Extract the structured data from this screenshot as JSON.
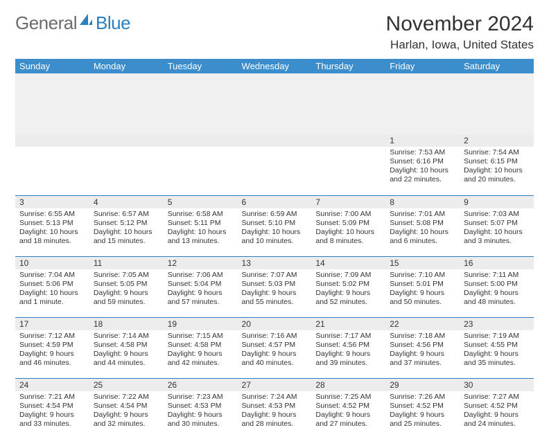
{
  "logo": {
    "text1": "General",
    "text2": "Blue"
  },
  "title": "November 2024",
  "location": "Harlan, Iowa, United States",
  "colors": {
    "header_bg": "#3c8dcc",
    "header_text": "#ffffff",
    "rule": "#2a7fbf",
    "daynum_bg": "#ececec",
    "body_text": "#333333",
    "logo_gray": "#6b6b6b",
    "logo_blue": "#2a7fbf"
  },
  "day_names": [
    "Sunday",
    "Monday",
    "Tuesday",
    "Wednesday",
    "Thursday",
    "Friday",
    "Saturday"
  ],
  "weeks": [
    [
      null,
      null,
      null,
      null,
      null,
      {
        "n": "1",
        "sr": "Sunrise: 7:53 AM",
        "ss": "Sunset: 6:16 PM",
        "dl": "Daylight: 10 hours and 22 minutes."
      },
      {
        "n": "2",
        "sr": "Sunrise: 7:54 AM",
        "ss": "Sunset: 6:15 PM",
        "dl": "Daylight: 10 hours and 20 minutes."
      }
    ],
    [
      {
        "n": "3",
        "sr": "Sunrise: 6:55 AM",
        "ss": "Sunset: 5:13 PM",
        "dl": "Daylight: 10 hours and 18 minutes."
      },
      {
        "n": "4",
        "sr": "Sunrise: 6:57 AM",
        "ss": "Sunset: 5:12 PM",
        "dl": "Daylight: 10 hours and 15 minutes."
      },
      {
        "n": "5",
        "sr": "Sunrise: 6:58 AM",
        "ss": "Sunset: 5:11 PM",
        "dl": "Daylight: 10 hours and 13 minutes."
      },
      {
        "n": "6",
        "sr": "Sunrise: 6:59 AM",
        "ss": "Sunset: 5:10 PM",
        "dl": "Daylight: 10 hours and 10 minutes."
      },
      {
        "n": "7",
        "sr": "Sunrise: 7:00 AM",
        "ss": "Sunset: 5:09 PM",
        "dl": "Daylight: 10 hours and 8 minutes."
      },
      {
        "n": "8",
        "sr": "Sunrise: 7:01 AM",
        "ss": "Sunset: 5:08 PM",
        "dl": "Daylight: 10 hours and 6 minutes."
      },
      {
        "n": "9",
        "sr": "Sunrise: 7:03 AM",
        "ss": "Sunset: 5:07 PM",
        "dl": "Daylight: 10 hours and 3 minutes."
      }
    ],
    [
      {
        "n": "10",
        "sr": "Sunrise: 7:04 AM",
        "ss": "Sunset: 5:06 PM",
        "dl": "Daylight: 10 hours and 1 minute."
      },
      {
        "n": "11",
        "sr": "Sunrise: 7:05 AM",
        "ss": "Sunset: 5:05 PM",
        "dl": "Daylight: 9 hours and 59 minutes."
      },
      {
        "n": "12",
        "sr": "Sunrise: 7:06 AM",
        "ss": "Sunset: 5:04 PM",
        "dl": "Daylight: 9 hours and 57 minutes."
      },
      {
        "n": "13",
        "sr": "Sunrise: 7:07 AM",
        "ss": "Sunset: 5:03 PM",
        "dl": "Daylight: 9 hours and 55 minutes."
      },
      {
        "n": "14",
        "sr": "Sunrise: 7:09 AM",
        "ss": "Sunset: 5:02 PM",
        "dl": "Daylight: 9 hours and 52 minutes."
      },
      {
        "n": "15",
        "sr": "Sunrise: 7:10 AM",
        "ss": "Sunset: 5:01 PM",
        "dl": "Daylight: 9 hours and 50 minutes."
      },
      {
        "n": "16",
        "sr": "Sunrise: 7:11 AM",
        "ss": "Sunset: 5:00 PM",
        "dl": "Daylight: 9 hours and 48 minutes."
      }
    ],
    [
      {
        "n": "17",
        "sr": "Sunrise: 7:12 AM",
        "ss": "Sunset: 4:59 PM",
        "dl": "Daylight: 9 hours and 46 minutes."
      },
      {
        "n": "18",
        "sr": "Sunrise: 7:14 AM",
        "ss": "Sunset: 4:58 PM",
        "dl": "Daylight: 9 hours and 44 minutes."
      },
      {
        "n": "19",
        "sr": "Sunrise: 7:15 AM",
        "ss": "Sunset: 4:58 PM",
        "dl": "Daylight: 9 hours and 42 minutes."
      },
      {
        "n": "20",
        "sr": "Sunrise: 7:16 AM",
        "ss": "Sunset: 4:57 PM",
        "dl": "Daylight: 9 hours and 40 minutes."
      },
      {
        "n": "21",
        "sr": "Sunrise: 7:17 AM",
        "ss": "Sunset: 4:56 PM",
        "dl": "Daylight: 9 hours and 39 minutes."
      },
      {
        "n": "22",
        "sr": "Sunrise: 7:18 AM",
        "ss": "Sunset: 4:56 PM",
        "dl": "Daylight: 9 hours and 37 minutes."
      },
      {
        "n": "23",
        "sr": "Sunrise: 7:19 AM",
        "ss": "Sunset: 4:55 PM",
        "dl": "Daylight: 9 hours and 35 minutes."
      }
    ],
    [
      {
        "n": "24",
        "sr": "Sunrise: 7:21 AM",
        "ss": "Sunset: 4:54 PM",
        "dl": "Daylight: 9 hours and 33 minutes."
      },
      {
        "n": "25",
        "sr": "Sunrise: 7:22 AM",
        "ss": "Sunset: 4:54 PM",
        "dl": "Daylight: 9 hours and 32 minutes."
      },
      {
        "n": "26",
        "sr": "Sunrise: 7:23 AM",
        "ss": "Sunset: 4:53 PM",
        "dl": "Daylight: 9 hours and 30 minutes."
      },
      {
        "n": "27",
        "sr": "Sunrise: 7:24 AM",
        "ss": "Sunset: 4:53 PM",
        "dl": "Daylight: 9 hours and 28 minutes."
      },
      {
        "n": "28",
        "sr": "Sunrise: 7:25 AM",
        "ss": "Sunset: 4:52 PM",
        "dl": "Daylight: 9 hours and 27 minutes."
      },
      {
        "n": "29",
        "sr": "Sunrise: 7:26 AM",
        "ss": "Sunset: 4:52 PM",
        "dl": "Daylight: 9 hours and 25 minutes."
      },
      {
        "n": "30",
        "sr": "Sunrise: 7:27 AM",
        "ss": "Sunset: 4:52 PM",
        "dl": "Daylight: 9 hours and 24 minutes."
      }
    ]
  ]
}
